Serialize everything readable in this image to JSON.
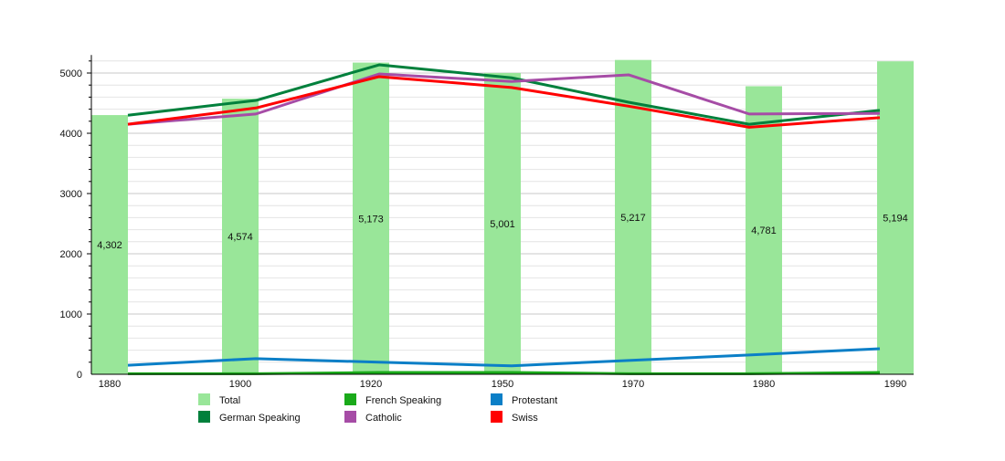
{
  "chart_data": {
    "type": "bar",
    "categories": [
      "1880",
      "1900",
      "1920",
      "1950",
      "1970",
      "1980",
      "1990"
    ],
    "ylim": [
      0,
      5300
    ],
    "yticks": [
      0,
      1000,
      2000,
      3000,
      4000,
      5000
    ],
    "grid": true,
    "legend_position": "bottom",
    "bars": {
      "name": "Total",
      "color": "#99e699",
      "values": [
        4302,
        4574,
        5173,
        5001,
        5217,
        4781,
        5194
      ],
      "labels": [
        "4,302",
        "4,574",
        "5,173",
        "5,001",
        "5,217",
        "4,781",
        "5,194"
      ]
    },
    "series": [
      {
        "name": "German Speaking",
        "color": "#00803c",
        "values": [
          4300,
          4545,
          5136,
          4920,
          4515,
          4150,
          4380
        ]
      },
      {
        "name": "French Speaking",
        "color": "#1aaa1a",
        "values": [
          10,
          10,
          30,
          30,
          10,
          10,
          30
        ]
      },
      {
        "name": "Protestant",
        "color": "#0b7fc7",
        "values": [
          150,
          260,
          200,
          140,
          230,
          320,
          425
        ]
      },
      {
        "name": "Catholic",
        "color": "#a64ca6",
        "values": [
          4150,
          4320,
          4985,
          4860,
          4970,
          4320,
          4330
        ]
      },
      {
        "name": "Swiss",
        "color": "#ff0000",
        "values": [
          4150,
          4420,
          4940,
          4760,
          4450,
          4100,
          4260
        ]
      }
    ],
    "legend": [
      "Total",
      "French Speaking",
      "Protestant",
      "German Speaking",
      "Catholic",
      "Swiss"
    ]
  }
}
